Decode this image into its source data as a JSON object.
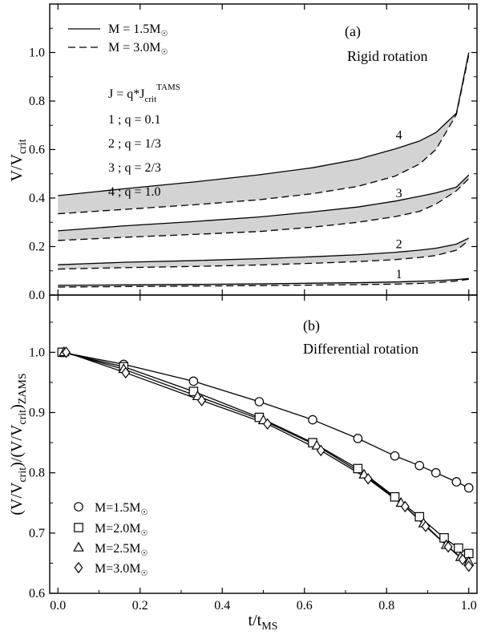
{
  "chart_data": [
    {
      "type": "area",
      "panel_label": "(a)",
      "title": "Rigid rotation",
      "ylabel": "V/V",
      "ylabel_sub": "crit",
      "xlim": [
        -0.02,
        1.02
      ],
      "ylim": [
        0.0,
        1.2
      ],
      "yticks": [
        "0.0",
        "0.2",
        "0.4",
        "0.6",
        "0.8",
        "1.0"
      ],
      "legend": [
        {
          "label": "M = 1.5M",
          "symbol": "☉",
          "style": "solid"
        },
        {
          "label": "M = 3.0M",
          "symbol": "☉",
          "style": "dashed"
        }
      ],
      "formula": {
        "prefix": "J = q*J",
        "sub": "crit",
        "sup": "TAMS"
      },
      "q_list": [
        "1 ; q = 0.1",
        "2 ; q = 1/3",
        "3 ; q = 2/3",
        "4 ; q = 1.0"
      ],
      "x": [
        0.0,
        0.16,
        0.33,
        0.49,
        0.62,
        0.73,
        0.82,
        0.88,
        0.92,
        0.97,
        1.0
      ],
      "series": [
        {
          "name": "1",
          "upper": [
            0.04,
            0.042,
            0.044,
            0.046,
            0.049,
            0.051,
            0.054,
            0.057,
            0.059,
            0.064,
            0.068
          ],
          "lower": [
            0.033,
            0.035,
            0.037,
            0.039,
            0.041,
            0.043,
            0.045,
            0.048,
            0.051,
            0.058,
            0.065
          ]
        },
        {
          "name": "2",
          "upper": [
            0.125,
            0.135,
            0.142,
            0.15,
            0.158,
            0.166,
            0.176,
            0.185,
            0.193,
            0.21,
            0.235
          ],
          "lower": [
            0.107,
            0.113,
            0.118,
            0.124,
            0.131,
            0.138,
            0.146,
            0.155,
            0.163,
            0.185,
            0.225
          ]
        },
        {
          "name": "3",
          "upper": [
            0.265,
            0.285,
            0.303,
            0.322,
            0.343,
            0.363,
            0.387,
            0.407,
            0.421,
            0.445,
            0.495
          ],
          "lower": [
            0.225,
            0.238,
            0.25,
            0.262,
            0.28,
            0.3,
            0.323,
            0.345,
            0.375,
            0.43,
            0.48
          ]
        },
        {
          "name": "4",
          "upper": [
            0.41,
            0.438,
            0.466,
            0.496,
            0.525,
            0.56,
            0.602,
            0.635,
            0.67,
            0.75,
            1.0
          ],
          "lower": [
            0.335,
            0.353,
            0.372,
            0.393,
            0.418,
            0.448,
            0.49,
            0.54,
            0.6,
            0.745,
            0.99
          ]
        }
      ]
    },
    {
      "type": "line",
      "panel_label": "(b)",
      "title": "Differential rotation",
      "xlabel": "t/t",
      "xlabel_sub": "MS",
      "ylabel_parts": [
        "(V/V",
        "crit",
        ")/(V/V",
        "crit",
        ")",
        "ZAMS"
      ],
      "xlim": [
        -0.02,
        1.02
      ],
      "ylim": [
        0.6,
        1.095
      ],
      "xticks": [
        "0.0",
        "0.2",
        "0.4",
        "0.6",
        "0.8",
        "1.0"
      ],
      "yticks": [
        "0.6",
        "0.7",
        "0.8",
        "0.9",
        "1.0"
      ],
      "series": [
        {
          "name": "M=1.5M",
          "symbol": "☉",
          "marker": "circle",
          "x": [
            0.01,
            0.16,
            0.33,
            0.49,
            0.62,
            0.73,
            0.82,
            0.88,
            0.92,
            0.97,
            1.0
          ],
          "y": [
            1.0,
            0.98,
            0.952,
            0.918,
            0.888,
            0.857,
            0.828,
            0.812,
            0.8,
            0.785,
            0.775
          ]
        },
        {
          "name": "M=2.0M",
          "symbol": "☉",
          "marker": "square",
          "x": [
            0.01,
            0.16,
            0.33,
            0.49,
            0.62,
            0.73,
            0.82,
            0.88,
            0.94,
            0.975,
            1.0
          ],
          "y": [
            1.0,
            0.976,
            0.935,
            0.892,
            0.85,
            0.807,
            0.76,
            0.727,
            0.692,
            0.675,
            0.666
          ]
        },
        {
          "name": "M=2.5M",
          "symbol": "☉",
          "marker": "triangle",
          "x": [
            0.015,
            0.16,
            0.34,
            0.5,
            0.63,
            0.745,
            0.835,
            0.89,
            0.945,
            0.98,
            1.0
          ],
          "y": [
            1.0,
            0.972,
            0.927,
            0.887,
            0.845,
            0.797,
            0.75,
            0.716,
            0.68,
            0.66,
            0.652
          ]
        },
        {
          "name": "M=3.0M",
          "symbol": "☉",
          "marker": "diamond",
          "x": [
            0.02,
            0.165,
            0.35,
            0.51,
            0.64,
            0.755,
            0.845,
            0.895,
            0.95,
            0.985,
            1.0
          ],
          "y": [
            1.0,
            0.966,
            0.92,
            0.881,
            0.837,
            0.79,
            0.744,
            0.711,
            0.677,
            0.656,
            0.645
          ]
        }
      ]
    }
  ]
}
